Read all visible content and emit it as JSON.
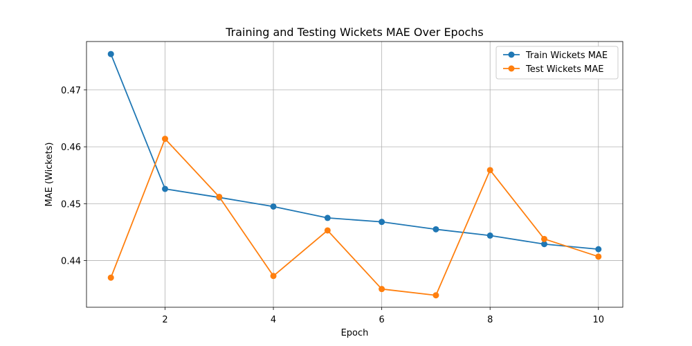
{
  "chart_data": {
    "type": "line",
    "title": "Training and Testing Wickets MAE Over Epochs",
    "xlabel": "Epoch",
    "ylabel": "MAE (Wickets)",
    "x": [
      1,
      2,
      3,
      4,
      5,
      6,
      7,
      8,
      9,
      10
    ],
    "xticks": [
      2,
      4,
      6,
      8,
      10
    ],
    "yticks": [
      0.44,
      0.45,
      0.46,
      0.47
    ],
    "xlim": [
      0.55,
      10.45
    ],
    "ylim": [
      0.4318,
      0.4785
    ],
    "grid": true,
    "legend_position": "top-right",
    "series": [
      {
        "name": "Train Wickets MAE",
        "color": "#1f77b4",
        "values": [
          0.4763,
          0.4526,
          0.4511,
          0.4495,
          0.4475,
          0.4468,
          0.4455,
          0.4444,
          0.4429,
          0.442
        ]
      },
      {
        "name": "Test Wickets MAE",
        "color": "#ff7f0e",
        "values": [
          0.437,
          0.4614,
          0.4512,
          0.4373,
          0.4453,
          0.435,
          0.4339,
          0.4559,
          0.4438,
          0.4407
        ]
      }
    ]
  }
}
